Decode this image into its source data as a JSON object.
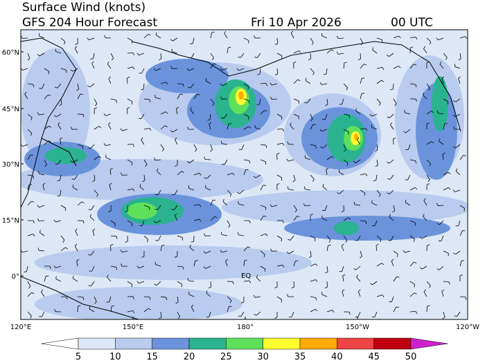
{
  "header": {
    "title": "Surface Wind (knots)",
    "subtitle": "GFS 204 Hour Forecast",
    "date": "Fri 10 Apr 2026",
    "time": "00 UTC"
  },
  "map": {
    "lat_labels": [
      "60°N",
      "45°N",
      "30°N",
      "15°N",
      "0°"
    ],
    "lon_labels": [
      "120°E",
      "150°E",
      "180°",
      "150°W",
      "120°W"
    ],
    "equator_label": "EQ"
  },
  "colorbar": {
    "levels": [
      5,
      10,
      15,
      20,
      25,
      30,
      35,
      40,
      45,
      50
    ],
    "under_color": "#ffffff",
    "over_color": "#cc22cc",
    "colors": [
      "#dde7f6",
      "#b9cbee",
      "#6a93dc",
      "#2ab38e",
      "#5fe05a",
      "#ffff30",
      "#ffaa00",
      "#ee4444",
      "#c00010"
    ]
  }
}
